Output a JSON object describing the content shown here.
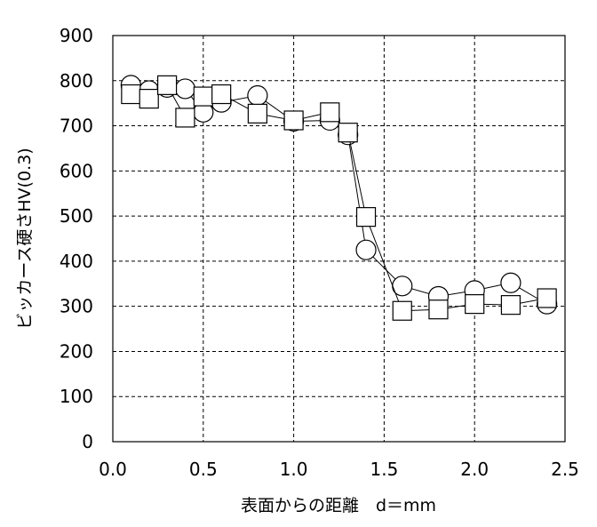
{
  "chart_data": {
    "type": "scatter",
    "xlabel": "表面からの距離　d＝mm",
    "ylabel": "ビッカース硬さHV(0.3)",
    "xlim": [
      0,
      2.5
    ],
    "ylim": [
      0,
      900
    ],
    "x_ticks": [
      "0.0",
      "0.5",
      "1.0",
      "1.5",
      "2.0",
      "2.5"
    ],
    "y_ticks": [
      "0",
      "100",
      "200",
      "300",
      "400",
      "500",
      "600",
      "700",
      "800",
      "900"
    ],
    "grid": "dashed",
    "series": [
      {
        "marker": "circle",
        "points": [
          [
            0.1,
            790
          ],
          [
            0.2,
            778
          ],
          [
            0.3,
            785
          ],
          [
            0.4,
            782
          ],
          [
            0.5,
            730
          ],
          [
            0.6,
            752
          ],
          [
            0.8,
            767
          ],
          [
            1.0,
            710
          ],
          [
            1.2,
            712
          ],
          [
            1.3,
            680
          ],
          [
            1.4,
            425
          ],
          [
            1.6,
            345
          ],
          [
            1.8,
            322
          ],
          [
            2.0,
            335
          ],
          [
            2.2,
            352
          ],
          [
            2.4,
            305
          ]
        ]
      },
      {
        "marker": "square",
        "points": [
          [
            0.1,
            770
          ],
          [
            0.2,
            760
          ],
          [
            0.3,
            790
          ],
          [
            0.4,
            718
          ],
          [
            0.5,
            765
          ],
          [
            0.6,
            770
          ],
          [
            0.8,
            727
          ],
          [
            1.0,
            712
          ],
          [
            1.2,
            730
          ],
          [
            1.3,
            685
          ],
          [
            1.4,
            498
          ],
          [
            1.6,
            290
          ],
          [
            1.8,
            293
          ],
          [
            2.0,
            305
          ],
          [
            2.2,
            303
          ],
          [
            2.4,
            318
          ]
        ]
      }
    ]
  }
}
